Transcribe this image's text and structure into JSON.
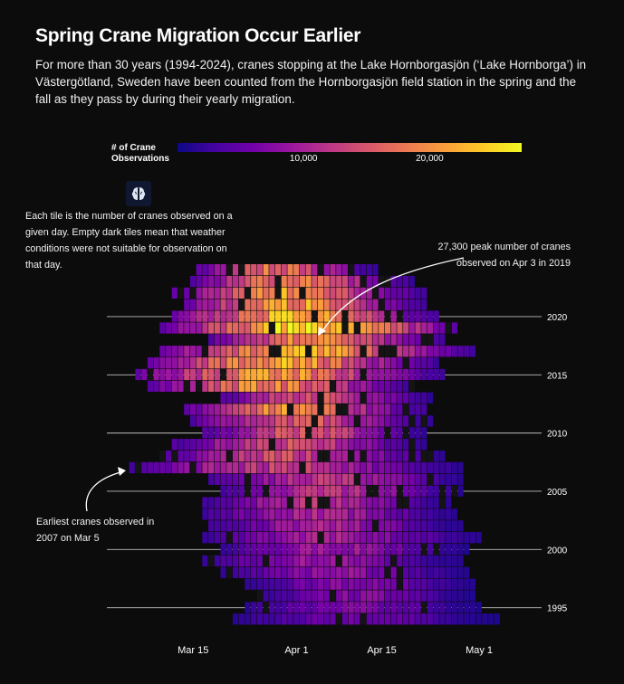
{
  "title": "Spring Crane Migration Occur Earlier",
  "subtitle": "For more than 30 years (1994-2024), cranes stopping at the Lake Hornborgasjön (‘Lake Hornborga’) in Västergötland, Sweden have been counted from the Hornborgasjön field station in the spring and the fall as they pass by during their yearly migration.",
  "legend": {
    "title_line1": "# of Crane",
    "title_line2": "Observations",
    "ticks": [
      {
        "label": "10,000",
        "value": 10000
      },
      {
        "label": "20,000",
        "value": 20000
      }
    ],
    "max_value": 27300,
    "colors": [
      "#0d0887",
      "#46039f",
      "#7201a8",
      "#9c179e",
      "#bd3786",
      "#d8576b",
      "#ed7953",
      "#fb9f3a",
      "#fdca26",
      "#f0f921"
    ],
    "empty_color": "#141414"
  },
  "annotations": {
    "tiles_note": "Each tile is the number of cranes observed on a given day. Empty dark tiles mean that weather conditions were not suitable for observation on that day.",
    "peak_note": "27,300 peak number of cranes observed on Apr 3 in 2019",
    "earliest_note": "Earliest cranes observed in 2007 on Mar 5"
  },
  "chart_data": {
    "type": "heatmap",
    "title": "Spring Crane Migration Occur Earlier",
    "x_axis": {
      "type": "date",
      "ticks": [
        "Mar 15",
        "Apr 1",
        "Apr 15",
        "May 1"
      ],
      "range": [
        "Mar 4",
        "May 6"
      ]
    },
    "y_axis": {
      "type": "year",
      "ticks": [
        "1995",
        "2000",
        "2005",
        "2010",
        "2015",
        "2020"
      ],
      "range": [
        1994,
        2024
      ]
    },
    "value_label": "# of Crane Observations",
    "peak": {
      "year": 2019,
      "date": "Apr 3",
      "value": 27300
    },
    "earliest": {
      "year": 2007,
      "date": "Mar 5"
    },
    "season_by_year": [
      {
        "year": 1994,
        "start": "Mar 22",
        "end": "May 4",
        "peak": 6000
      },
      {
        "year": 1995,
        "start": "Mar 24",
        "end": "May 1",
        "peak": 7000
      },
      {
        "year": 1996,
        "start": "Mar 26",
        "end": "Apr 30",
        "peak": 7500
      },
      {
        "year": 1997,
        "start": "Mar 24",
        "end": "Apr 30",
        "peak": 8000
      },
      {
        "year": 1998,
        "start": "Mar 20",
        "end": "Apr 29",
        "peak": 8500
      },
      {
        "year": 1999,
        "start": "Mar 17",
        "end": "Apr 28",
        "peak": 9000
      },
      {
        "year": 2000,
        "start": "Mar 20",
        "end": "Apr 29",
        "peak": 9500
      },
      {
        "year": 2001,
        "start": "Mar 17",
        "end": "May 1",
        "peak": 10000
      },
      {
        "year": 2002,
        "start": "Mar 18",
        "end": "Apr 28",
        "peak": 10500
      },
      {
        "year": 2003,
        "start": "Mar 17",
        "end": "Apr 27",
        "peak": 11000
      },
      {
        "year": 2004,
        "start": "Mar 17",
        "end": "Apr 26",
        "peak": 11500
      },
      {
        "year": 2005,
        "start": "Mar 20",
        "end": "Apr 28",
        "peak": 12000
      },
      {
        "year": 2006,
        "start": "Mar 18",
        "end": "Apr 28",
        "peak": 12500
      },
      {
        "year": 2007,
        "start": "Mar 5",
        "end": "Apr 28",
        "peak": 13000
      },
      {
        "year": 2008,
        "start": "Mar 10",
        "end": "Apr 25",
        "peak": 14000
      },
      {
        "year": 2009,
        "start": "Mar 12",
        "end": "Apr 22",
        "peak": 15000
      },
      {
        "year": 2010,
        "start": "Mar 17",
        "end": "Apr 22",
        "peak": 15500
      },
      {
        "year": 2011,
        "start": "Mar 15",
        "end": "Apr 23",
        "peak": 16000
      },
      {
        "year": 2012,
        "start": "Mar 14",
        "end": "Apr 22",
        "peak": 20000
      },
      {
        "year": 2013,
        "start": "Mar 20",
        "end": "Apr 23",
        "peak": 16000
      },
      {
        "year": 2014,
        "start": "Mar 8",
        "end": "Apr 20",
        "peak": 20000
      },
      {
        "year": 2015,
        "start": "Mar 6",
        "end": "Apr 25",
        "peak": 21000
      },
      {
        "year": 2016,
        "start": "Mar 8",
        "end": "Apr 24",
        "peak": 22000
      },
      {
        "year": 2017,
        "start": "Mar 10",
        "end": "Apr 30",
        "peak": 22500
      },
      {
        "year": 2018,
        "start": "Mar 18",
        "end": "Apr 25",
        "peak": 20000
      },
      {
        "year": 2019,
        "start": "Mar 10",
        "end": "Apr 27",
        "peak": 27300
      },
      {
        "year": 2020,
        "start": "Mar 12",
        "end": "Apr 24",
        "peak": 23000
      },
      {
        "year": 2021,
        "start": "Mar 14",
        "end": "Apr 22",
        "peak": 22000
      },
      {
        "year": 2022,
        "start": "Mar 12",
        "end": "Apr 22",
        "peak": 21000
      },
      {
        "year": 2023,
        "start": "Mar 15",
        "end": "Apr 20",
        "peak": 19000
      },
      {
        "year": 2024,
        "start": "Mar 16",
        "end": "Apr 14",
        "peak": 18000
      }
    ]
  }
}
